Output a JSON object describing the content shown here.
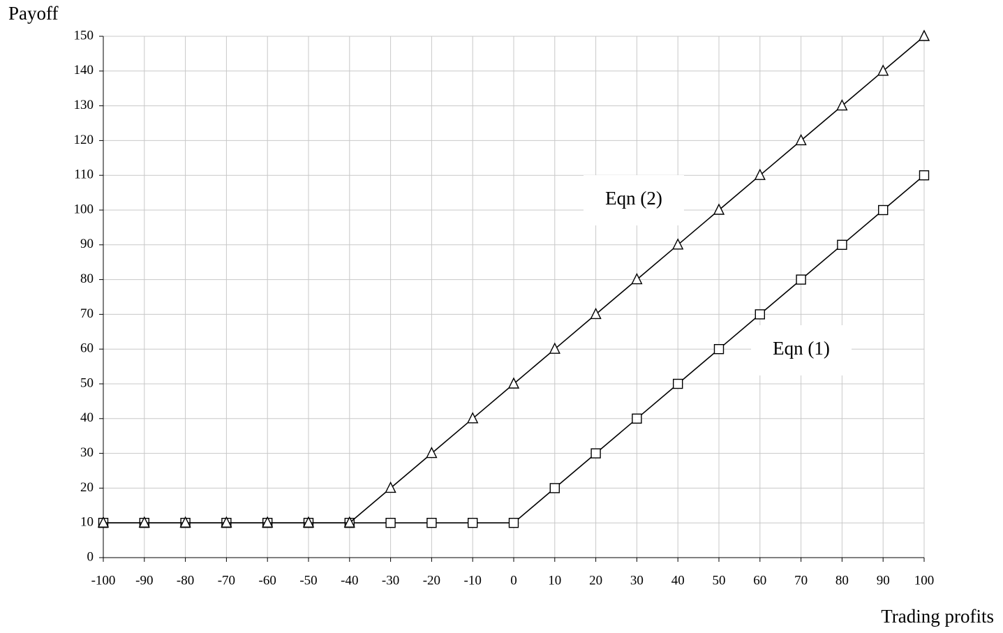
{
  "chart_data": {
    "type": "line",
    "y_label": "Payoff",
    "x_label": "Trading profits",
    "x": [
      -100,
      -90,
      -80,
      -70,
      -60,
      -50,
      -40,
      -30,
      -20,
      -10,
      0,
      10,
      20,
      30,
      40,
      50,
      60,
      70,
      80,
      90,
      100
    ],
    "series": [
      {
        "name": "Eqn (1)",
        "color": "#000000",
        "marker": "square",
        "values": [
          10,
          10,
          10,
          10,
          10,
          10,
          10,
          10,
          10,
          10,
          10,
          20,
          30,
          40,
          50,
          60,
          70,
          80,
          90,
          100,
          110
        ]
      },
      {
        "name": "Eqn (2)",
        "color": "#000000",
        "marker": "triangle",
        "values": [
          10,
          10,
          10,
          10,
          10,
          10,
          10,
          20,
          30,
          40,
          50,
          60,
          70,
          80,
          90,
          100,
          110,
          120,
          130,
          140,
          150
        ]
      }
    ],
    "xlim": [
      -100,
      100
    ],
    "xticks": [
      -100,
      -90,
      -80,
      -70,
      -60,
      -50,
      -40,
      -30,
      -20,
      -10,
      0,
      10,
      20,
      30,
      40,
      50,
      60,
      70,
      80,
      90,
      100
    ],
    "ylim": [
      0,
      150
    ],
    "yticks": [
      0,
      10,
      20,
      30,
      40,
      50,
      60,
      70,
      80,
      90,
      100,
      110,
      120,
      130,
      140,
      150
    ],
    "grid": true
  }
}
